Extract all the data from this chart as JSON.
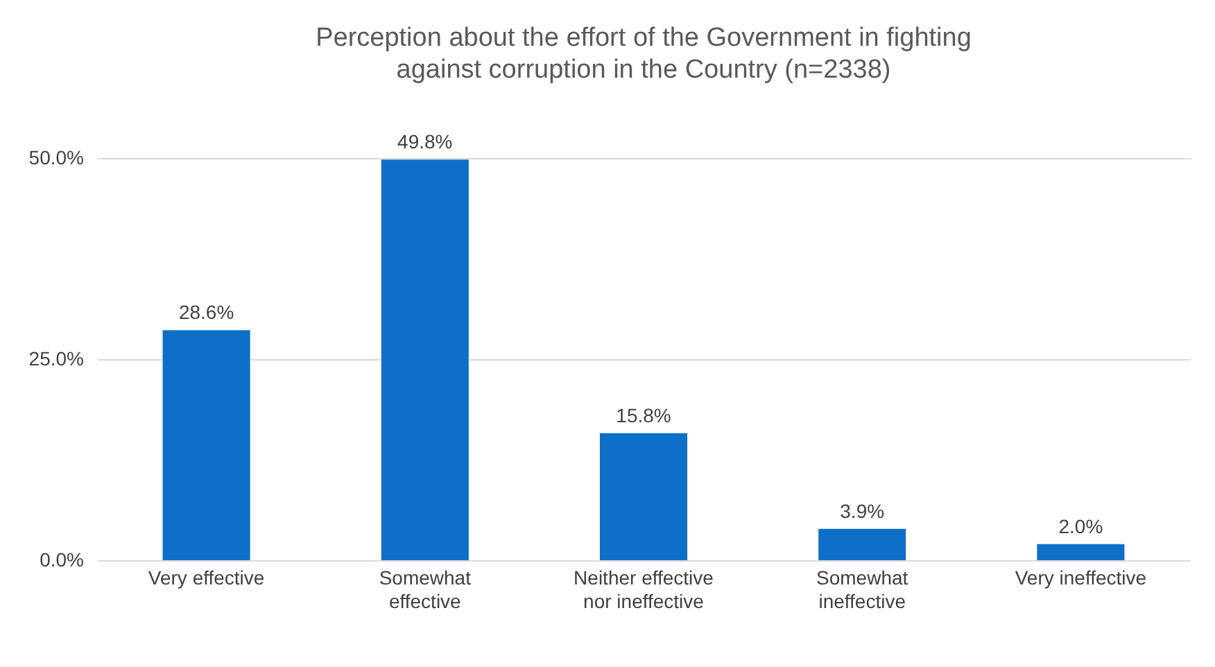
{
  "chart_data": {
    "type": "bar",
    "title": "Perception about the effort of the Government in fighting against corruption in the Country (n=2338)",
    "categories": [
      "Very effective",
      "Somewhat effective",
      "Neither effective nor ineffective",
      "Somewhat ineffective",
      "Very ineffective"
    ],
    "values": [
      28.6,
      49.8,
      15.8,
      3.9,
      2.0
    ],
    "color": "#0e6fc9",
    "value_labels": [
      "28.6%",
      "49.8%",
      "15.8%",
      "3.9%",
      "2.0%"
    ],
    "ylim": [
      0,
      50
    ],
    "yticks": [
      {
        "value": 0,
        "label": "0.0%"
      },
      {
        "value": 25,
        "label": "25.0%"
      },
      {
        "value": 50,
        "label": "50.0%"
      }
    ],
    "grid": "y"
  }
}
